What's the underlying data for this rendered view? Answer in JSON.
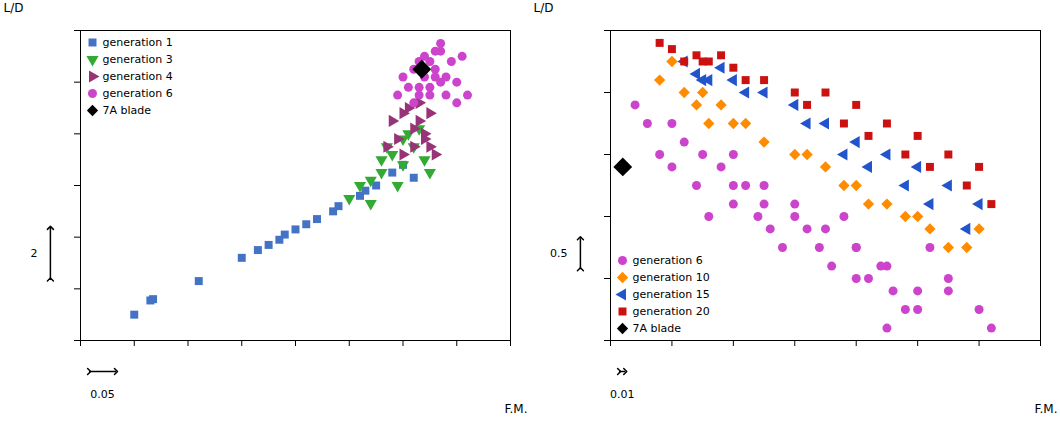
{
  "chart_data": [
    {
      "type": "scatter",
      "xlabel": "F.M.",
      "ylabel": "L/D",
      "xlim": [
        0,
        0.8
      ],
      "xticks": [
        0,
        0.1,
        0.2,
        0.3,
        0.4,
        0.5,
        0.6,
        0.7,
        0.8
      ],
      "ylim": [
        0,
        12
      ],
      "yticks": [
        0,
        2,
        4,
        6,
        8,
        10,
        12
      ],
      "tick_labels": false,
      "legend": "upper left",
      "scale_bars": {
        "x": {
          "value": 0.05,
          "label": "0.05"
        },
        "y": {
          "value": 2,
          "label": "2"
        }
      },
      "series": [
        {
          "name": "generation 1",
          "color": "#4472C4",
          "marker": "square",
          "x": [
            0.1,
            0.13,
            0.135,
            0.22,
            0.3,
            0.33,
            0.35,
            0.37,
            0.38,
            0.4,
            0.42,
            0.44,
            0.47,
            0.48,
            0.52,
            0.53,
            0.55,
            0.58,
            0.6,
            0.62
          ],
          "values": [
            1.0,
            1.55,
            1.6,
            2.3,
            3.2,
            3.5,
            3.7,
            3.9,
            4.1,
            4.3,
            4.5,
            4.7,
            5.0,
            5.2,
            5.6,
            5.8,
            6.0,
            6.5,
            6.8,
            6.3
          ]
        },
        {
          "name": "generation 3",
          "color": "#33AA33",
          "marker": "triangle_down",
          "x": [
            0.5,
            0.52,
            0.54,
            0.54,
            0.56,
            0.56,
            0.57,
            0.58,
            0.59,
            0.6,
            0.6,
            0.61,
            0.62,
            0.63,
            0.64,
            0.65
          ],
          "values": [
            5.5,
            6.0,
            5.3,
            6.2,
            6.5,
            7.0,
            7.5,
            7.2,
            6.0,
            6.8,
            7.8,
            8.0,
            7.5,
            8.2,
            7.0,
            6.5
          ]
        },
        {
          "name": "generation 4",
          "color": "#993377",
          "marker": "triangle_right",
          "x": [
            0.57,
            0.58,
            0.59,
            0.6,
            0.6,
            0.61,
            0.62,
            0.62,
            0.63,
            0.63,
            0.64,
            0.64,
            0.65,
            0.65,
            0.66
          ],
          "values": [
            7.5,
            8.5,
            7.8,
            8.8,
            7.2,
            9.0,
            8.2,
            7.5,
            8.5,
            9.2,
            8.0,
            7.8,
            7.5,
            8.8,
            7.2
          ]
        },
        {
          "name": "generation 6",
          "color": "#CC44CC",
          "marker": "circle",
          "x": [
            0.59,
            0.6,
            0.61,
            0.62,
            0.62,
            0.63,
            0.63,
            0.64,
            0.64,
            0.65,
            0.65,
            0.66,
            0.66,
            0.67,
            0.67,
            0.68,
            0.68,
            0.69,
            0.7,
            0.7,
            0.71,
            0.72,
            0.63,
            0.64,
            0.65,
            0.66,
            0.67
          ],
          "values": [
            9.5,
            10.2,
            9.8,
            10.5,
            9.2,
            10.8,
            9.5,
            11.0,
            10.2,
            10.8,
            9.8,
            11.2,
            10.5,
            10.0,
            11.5,
            10.2,
            9.5,
            10.8,
            10.0,
            9.2,
            11.0,
            9.5,
            9.8,
            10.5,
            9.5,
            10.2,
            11.2
          ]
        },
        {
          "name": "7A blade",
          "color": "#000000",
          "marker": "diamond",
          "x": [
            0.635
          ],
          "values": [
            10.5
          ]
        }
      ]
    },
    {
      "type": "scatter",
      "xlabel": "F.M.",
      "ylabel": "L/D",
      "xlim": [
        0.1,
        0.8
      ],
      "xticks": [
        0.1,
        0.2,
        0.3,
        0.4,
        0.5,
        0.6,
        0.7,
        0.8
      ],
      "ylim": [
        1,
        6
      ],
      "yticks": [
        1,
        2,
        3,
        4,
        5,
        6
      ],
      "tick_labels": false,
      "legend": "lower left",
      "scale_bars": {
        "x": {
          "value": 0.01,
          "label": "0.01"
        },
        "y": {
          "value": 0.5,
          "label": "0.5"
        }
      },
      "series": [
        {
          "name": "generation 6",
          "color": "#CC44CC",
          "marker": "circle",
          "x": [
            0.14,
            0.16,
            0.18,
            0.2,
            0.22,
            0.24,
            0.26,
            0.28,
            0.3,
            0.32,
            0.34,
            0.36,
            0.38,
            0.4,
            0.42,
            0.44,
            0.46,
            0.48,
            0.5,
            0.52,
            0.54,
            0.56,
            0.58,
            0.6,
            0.62,
            0.3,
            0.35,
            0.4,
            0.45,
            0.5,
            0.55,
            0.2,
            0.25,
            0.3,
            0.55,
            0.6,
            0.65,
            0.7,
            0.72,
            0.35,
            0.5,
            0.65
          ],
          "values": [
            4.8,
            4.5,
            4.0,
            3.8,
            4.2,
            3.5,
            3.0,
            3.8,
            3.2,
            3.5,
            3.0,
            2.8,
            2.5,
            3.2,
            2.8,
            2.5,
            2.2,
            3.0,
            2.5,
            2.0,
            2.2,
            1.8,
            1.5,
            1.8,
            2.5,
            4.0,
            3.5,
            3.0,
            2.8,
            2.5,
            2.2,
            4.5,
            4.0,
            3.5,
            1.2,
            1.5,
            1.8,
            1.5,
            1.2,
            3.2,
            2.0,
            2.0
          ]
        },
        {
          "name": "generation 10",
          "color": "#FF8C00",
          "marker": "diamond",
          "x": [
            0.18,
            0.2,
            0.22,
            0.24,
            0.26,
            0.28,
            0.3,
            0.35,
            0.4,
            0.45,
            0.5,
            0.55,
            0.6,
            0.65,
            0.7,
            0.25,
            0.32,
            0.42,
            0.48,
            0.52,
            0.58,
            0.62,
            0.68
          ],
          "values": [
            5.2,
            5.5,
            5.0,
            4.8,
            4.5,
            4.8,
            4.5,
            4.2,
            4.0,
            3.8,
            3.5,
            3.2,
            3.0,
            2.5,
            2.8,
            5.0,
            4.5,
            4.0,
            3.5,
            3.2,
            3.0,
            2.8,
            2.5
          ]
        },
        {
          "name": "generation 15",
          "color": "#2255CC",
          "marker": "triangle_left",
          "x": [
            0.22,
            0.24,
            0.26,
            0.28,
            0.3,
            0.35,
            0.4,
            0.45,
            0.5,
            0.55,
            0.6,
            0.65,
            0.7,
            0.25,
            0.32,
            0.42,
            0.48,
            0.52,
            0.58,
            0.62,
            0.68
          ],
          "values": [
            5.5,
            5.3,
            5.2,
            5.4,
            5.2,
            5.0,
            4.8,
            4.5,
            4.2,
            4.0,
            3.8,
            3.5,
            3.2,
            5.2,
            5.0,
            4.5,
            4.0,
            3.8,
            3.5,
            3.2,
            2.8
          ]
        },
        {
          "name": "generation 20",
          "color": "#CC1111",
          "marker": "square",
          "x": [
            0.18,
            0.2,
            0.22,
            0.24,
            0.26,
            0.28,
            0.3,
            0.35,
            0.4,
            0.45,
            0.5,
            0.55,
            0.6,
            0.65,
            0.7,
            0.25,
            0.32,
            0.42,
            0.48,
            0.52,
            0.58,
            0.62,
            0.68,
            0.72
          ],
          "values": [
            5.8,
            5.7,
            5.5,
            5.6,
            5.5,
            5.6,
            5.4,
            5.2,
            5.0,
            5.0,
            4.8,
            4.5,
            4.3,
            4.0,
            3.8,
            5.5,
            5.2,
            4.8,
            4.5,
            4.3,
            4.0,
            3.8,
            3.5,
            3.2
          ]
        },
        {
          "name": "7A blade",
          "color": "#000000",
          "marker": "diamond",
          "x": [
            0.12
          ],
          "values": [
            3.8
          ]
        }
      ]
    }
  ]
}
